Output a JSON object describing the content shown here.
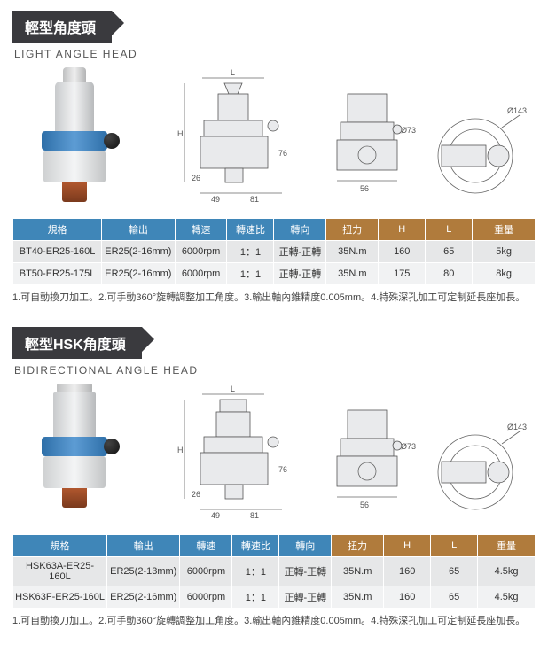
{
  "section1": {
    "title_cn": "輕型角度頭",
    "title_en": "LIGHT ANGLE HEAD",
    "drawing": {
      "L": "L",
      "H": "H",
      "d73": "Ø73",
      "d143": "Ø143",
      "dim49": "49",
      "dim81": "81",
      "dim56": "56",
      "dim26": "26",
      "dim76": "76"
    },
    "table": {
      "header_colors": [
        "#3f86b8",
        "#3f86b8",
        "#3f86b8",
        "#3f86b8",
        "#3f86b8",
        "#b07b3c",
        "#b07b3c",
        "#b07b3c",
        "#b07b3c"
      ],
      "columns": [
        "規格",
        "輸出",
        "轉速",
        "轉速比",
        "轉向",
        "扭力",
        "H",
        "L",
        "重量"
      ],
      "col_widths": [
        "17%",
        "14%",
        "10%",
        "9%",
        "10%",
        "10%",
        "9%",
        "9%",
        "12%"
      ],
      "rows": [
        [
          "BT40-ER25-160L",
          "ER25(2-16mm)",
          "6000rpm",
          "1：1",
          "正轉-正轉",
          "35N.m",
          "160",
          "65",
          "5kg"
        ],
        [
          "BT50-ER25-175L",
          "ER25(2-16mm)",
          "6000rpm",
          "1：1",
          "正轉-正轉",
          "35N.m",
          "175",
          "80",
          "8kg"
        ]
      ]
    },
    "footnote": "1.可自動換刀加工。2.可手動360°旋轉調整加工角度。3.輸出軸內錐精度0.005mm。4.特殊深孔加工可定制延長座加長。"
  },
  "section2": {
    "title_cn": "輕型HSK角度頭",
    "title_en": "BIDIRECTIONAL ANGLE HEAD",
    "drawing": {
      "L": "L",
      "H": "H",
      "d73": "Ø73",
      "d143": "Ø143",
      "dim49": "49",
      "dim81": "81",
      "dim56": "56",
      "dim26": "26",
      "dim76": "76"
    },
    "table": {
      "header_colors": [
        "#3f86b8",
        "#3f86b8",
        "#3f86b8",
        "#3f86b8",
        "#3f86b8",
        "#b07b3c",
        "#b07b3c",
        "#b07b3c",
        "#b07b3c"
      ],
      "columns": [
        "規格",
        "輸出",
        "轉速",
        "轉速比",
        "轉向",
        "扭力",
        "H",
        "L",
        "重量"
      ],
      "col_widths": [
        "18%",
        "14%",
        "10%",
        "9%",
        "10%",
        "10%",
        "9%",
        "9%",
        "11%"
      ],
      "rows": [
        [
          "HSK63A-ER25-160L",
          "ER25(2-13mm)",
          "6000rpm",
          "1：1",
          "正轉-正轉",
          "35N.m",
          "160",
          "65",
          "4.5kg"
        ],
        [
          "HSK63F-ER25-160L",
          "ER25(2-16mm)",
          "6000rpm",
          "1：1",
          "正轉-正轉",
          "35N.m",
          "160",
          "65",
          "4.5kg"
        ]
      ]
    },
    "footnote": "1.可自動換刀加工。2.可手動360°旋轉調整加工角度。3.輸出軸內錐精度0.005mm。4.特殊深孔加工可定制延長座加長。"
  }
}
